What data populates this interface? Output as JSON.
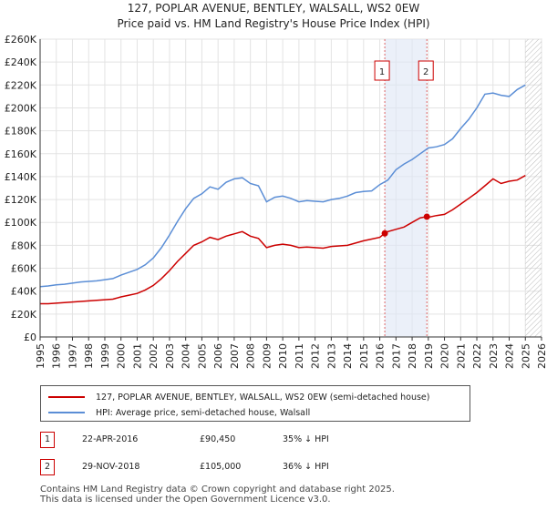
{
  "header": {
    "title_line1": "127, POPLAR AVENUE, BENTLEY, WALSALL, WS2 0EW",
    "title_line2": "Price paid vs. HM Land Registry's House Price Index (HPI)"
  },
  "colors": {
    "property_line": "#cc0000",
    "hpi_line": "#5b8ed6",
    "shade": "#dde6f5",
    "future_hatch": "#bbbbbb",
    "marker_vline": "#e06666"
  },
  "chart_data": {
    "type": "line",
    "title": "Price paid vs. HM Land Registry's House Price Index (HPI)",
    "xlabel": "",
    "ylabel": "",
    "xlim": [
      1995,
      2026
    ],
    "ylim": [
      0,
      260000
    ],
    "x_ticks": [
      1995,
      1996,
      1997,
      1998,
      1999,
      2000,
      2001,
      2002,
      2003,
      2004,
      2005,
      2006,
      2007,
      2008,
      2009,
      2010,
      2011,
      2012,
      2013,
      2014,
      2015,
      2016,
      2017,
      2018,
      2019,
      2020,
      2021,
      2022,
      2023,
      2024,
      2025,
      2026
    ],
    "y_ticks": [
      0,
      20000,
      40000,
      60000,
      80000,
      100000,
      120000,
      140000,
      160000,
      180000,
      200000,
      220000,
      240000,
      260000
    ],
    "y_tick_labels": [
      "£0",
      "£20K",
      "£40K",
      "£60K",
      "£80K",
      "£100K",
      "£120K",
      "£140K",
      "£160K",
      "£180K",
      "£200K",
      "£220K",
      "£240K",
      "£260K"
    ],
    "grid": true,
    "shaded_range": [
      2016.31,
      2018.91
    ],
    "future_from": 2025.0,
    "series": [
      {
        "name": "127, POPLAR AVENUE, BENTLEY, WALSALL, WS2 0EW (semi-detached house)",
        "color": "#cc0000",
        "x": [
          1995,
          1995.5,
          1996,
          1996.5,
          1997,
          1997.5,
          1998,
          1998.5,
          1999,
          1999.5,
          2000,
          2000.5,
          2001,
          2001.5,
          2002,
          2002.5,
          2003,
          2003.5,
          2004,
          2004.5,
          2005,
          2005.5,
          2006,
          2006.5,
          2007,
          2007.5,
          2008,
          2008.5,
          2009,
          2009.5,
          2010,
          2010.5,
          2011,
          2011.5,
          2012,
          2012.5,
          2013,
          2013.5,
          2014,
          2014.5,
          2015,
          2015.5,
          2016,
          2016.31,
          2016.5,
          2017,
          2017.5,
          2018,
          2018.5,
          2018.91,
          2019,
          2019.5,
          2020,
          2020.5,
          2021,
          2021.5,
          2022,
          2022.5,
          2023,
          2023.5,
          2024,
          2024.5,
          2025
        ],
        "values": [
          29000,
          29000,
          29500,
          30000,
          30500,
          31000,
          31500,
          32000,
          32500,
          33000,
          35000,
          36500,
          38000,
          41000,
          45000,
          51000,
          58000,
          66000,
          73000,
          80000,
          83000,
          87000,
          85000,
          88000,
          90000,
          92000,
          88000,
          86000,
          78000,
          80000,
          81000,
          80000,
          78000,
          78500,
          78000,
          77500,
          79000,
          79500,
          80000,
          82000,
          84000,
          85500,
          87000,
          90450,
          92000,
          94000,
          96000,
          100000,
          104000,
          105000,
          104500,
          106000,
          107000,
          111000,
          116000,
          121000,
          126000,
          132000,
          138000,
          134000,
          136000,
          137000,
          141000
        ]
      },
      {
        "name": "HPI: Average price, semi-detached house, Walsall",
        "color": "#5b8ed6",
        "x": [
          1995,
          1995.5,
          1996,
          1996.5,
          1997,
          1997.5,
          1998,
          1998.5,
          1999,
          1999.5,
          2000,
          2000.5,
          2001,
          2001.5,
          2002,
          2002.5,
          2003,
          2003.5,
          2004,
          2004.5,
          2005,
          2005.5,
          2006,
          2006.5,
          2007,
          2007.5,
          2008,
          2008.5,
          2009,
          2009.5,
          2010,
          2010.5,
          2011,
          2011.5,
          2012,
          2012.5,
          2013,
          2013.5,
          2014,
          2014.5,
          2015,
          2015.5,
          2016,
          2016.5,
          2017,
          2017.5,
          2018,
          2018.5,
          2019,
          2019.5,
          2020,
          2020.5,
          2021,
          2021.5,
          2022,
          2022.5,
          2023,
          2023.5,
          2024,
          2024.5,
          2025
        ],
        "values": [
          44000,
          44500,
          45500,
          46000,
          47000,
          48000,
          48500,
          49000,
          50000,
          51000,
          54000,
          56500,
          59000,
          63000,
          69000,
          78000,
          89000,
          101000,
          112000,
          121000,
          125000,
          131000,
          129000,
          135000,
          138000,
          139000,
          134000,
          132000,
          118000,
          122000,
          123000,
          121000,
          118000,
          119000,
          118500,
          118000,
          120000,
          121000,
          123000,
          126000,
          127000,
          127500,
          133000,
          137000,
          146000,
          151000,
          155000,
          160000,
          165000,
          166000,
          168000,
          173000,
          182000,
          190000,
          200000,
          212000,
          213000,
          211000,
          210000,
          216000,
          220000
        ]
      }
    ],
    "annotations": [
      {
        "label": "1",
        "x": 2016.31,
        "value": 90450
      },
      {
        "label": "2",
        "x": 2018.91,
        "value": 105000
      }
    ]
  },
  "legend": {
    "property_label": "127, POPLAR AVENUE, BENTLEY, WALSALL, WS2 0EW (semi-detached house)",
    "hpi_label": "HPI: Average price, semi-detached house, Walsall"
  },
  "transactions": [
    {
      "id": "1",
      "date": "22-APR-2016",
      "price": "£90,450",
      "hpi": "35% ↓ HPI"
    },
    {
      "id": "2",
      "date": "29-NOV-2018",
      "price": "£105,000",
      "hpi": "36% ↓ HPI"
    }
  ],
  "footer": {
    "line1": "Contains HM Land Registry data © Crown copyright and database right 2025.",
    "line2": "This data is licensed under the Open Government Licence v3.0."
  }
}
